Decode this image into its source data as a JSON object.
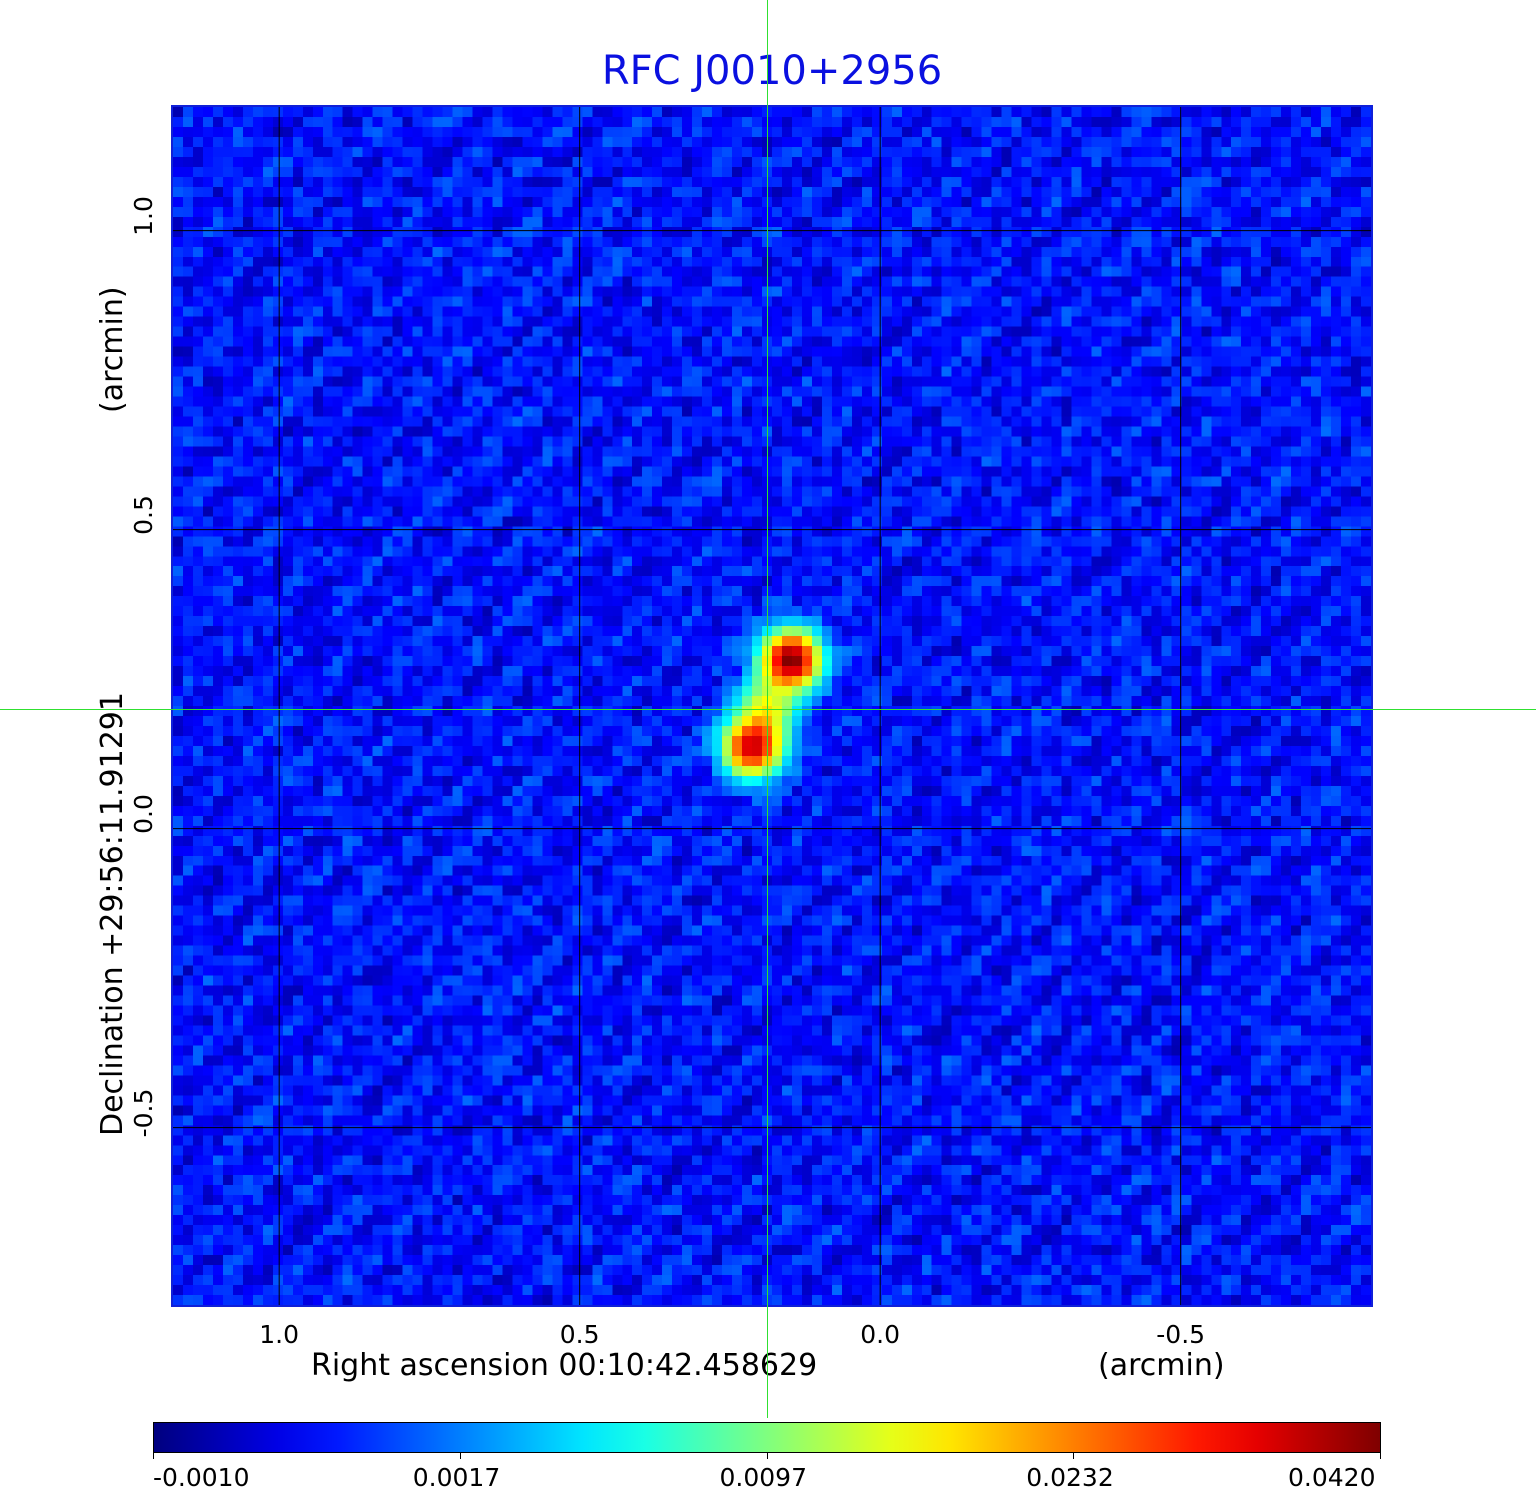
{
  "chart_data": {
    "type": "heatmap",
    "title": "RFC J0010+2956",
    "xlabel": "Right ascension  00:10:42.458629",
    "xunit": "(arcmin)",
    "ylabel": "Declination  +29:56:11.91291",
    "yunit": "(arcmin)",
    "xlim": [
      1.18,
      -0.82
    ],
    "ylim": [
      -0.8,
      1.21
    ],
    "xticks": [
      "1.0",
      "0.5",
      "0.0",
      "-0.5"
    ],
    "xtick_values": [
      1.0,
      0.5,
      0.0,
      -0.5
    ],
    "yticks": [
      "1.0",
      "0.5",
      "0.0",
      "-0.5"
    ],
    "ytick_values": [
      1.0,
      0.5,
      0.0,
      -0.5
    ],
    "grid": true,
    "colormap": "jet",
    "colorbar": {
      "ticks": [
        "-0.0010",
        "0.0017",
        "0.0097",
        "0.0232",
        "0.0420"
      ],
      "tick_values": [
        -0.001,
        0.0017,
        0.0097,
        0.0232,
        0.042
      ],
      "placement": "bottom"
    },
    "crosshair": {
      "x": 0.187,
      "y": 0.203,
      "color": "#30e030"
    },
    "sources": [
      {
        "x": 0.148,
        "y": 0.282,
        "peak": 0.042
      },
      {
        "x": 0.187,
        "y": 0.203,
        "peak": 0.014
      },
      {
        "x": 0.212,
        "y": 0.137,
        "peak": 0.036
      }
    ],
    "background_level": 0.0005,
    "colors": {
      "title": "#0a10e0",
      "frame": "#1020d8",
      "grid": "#000000"
    }
  }
}
